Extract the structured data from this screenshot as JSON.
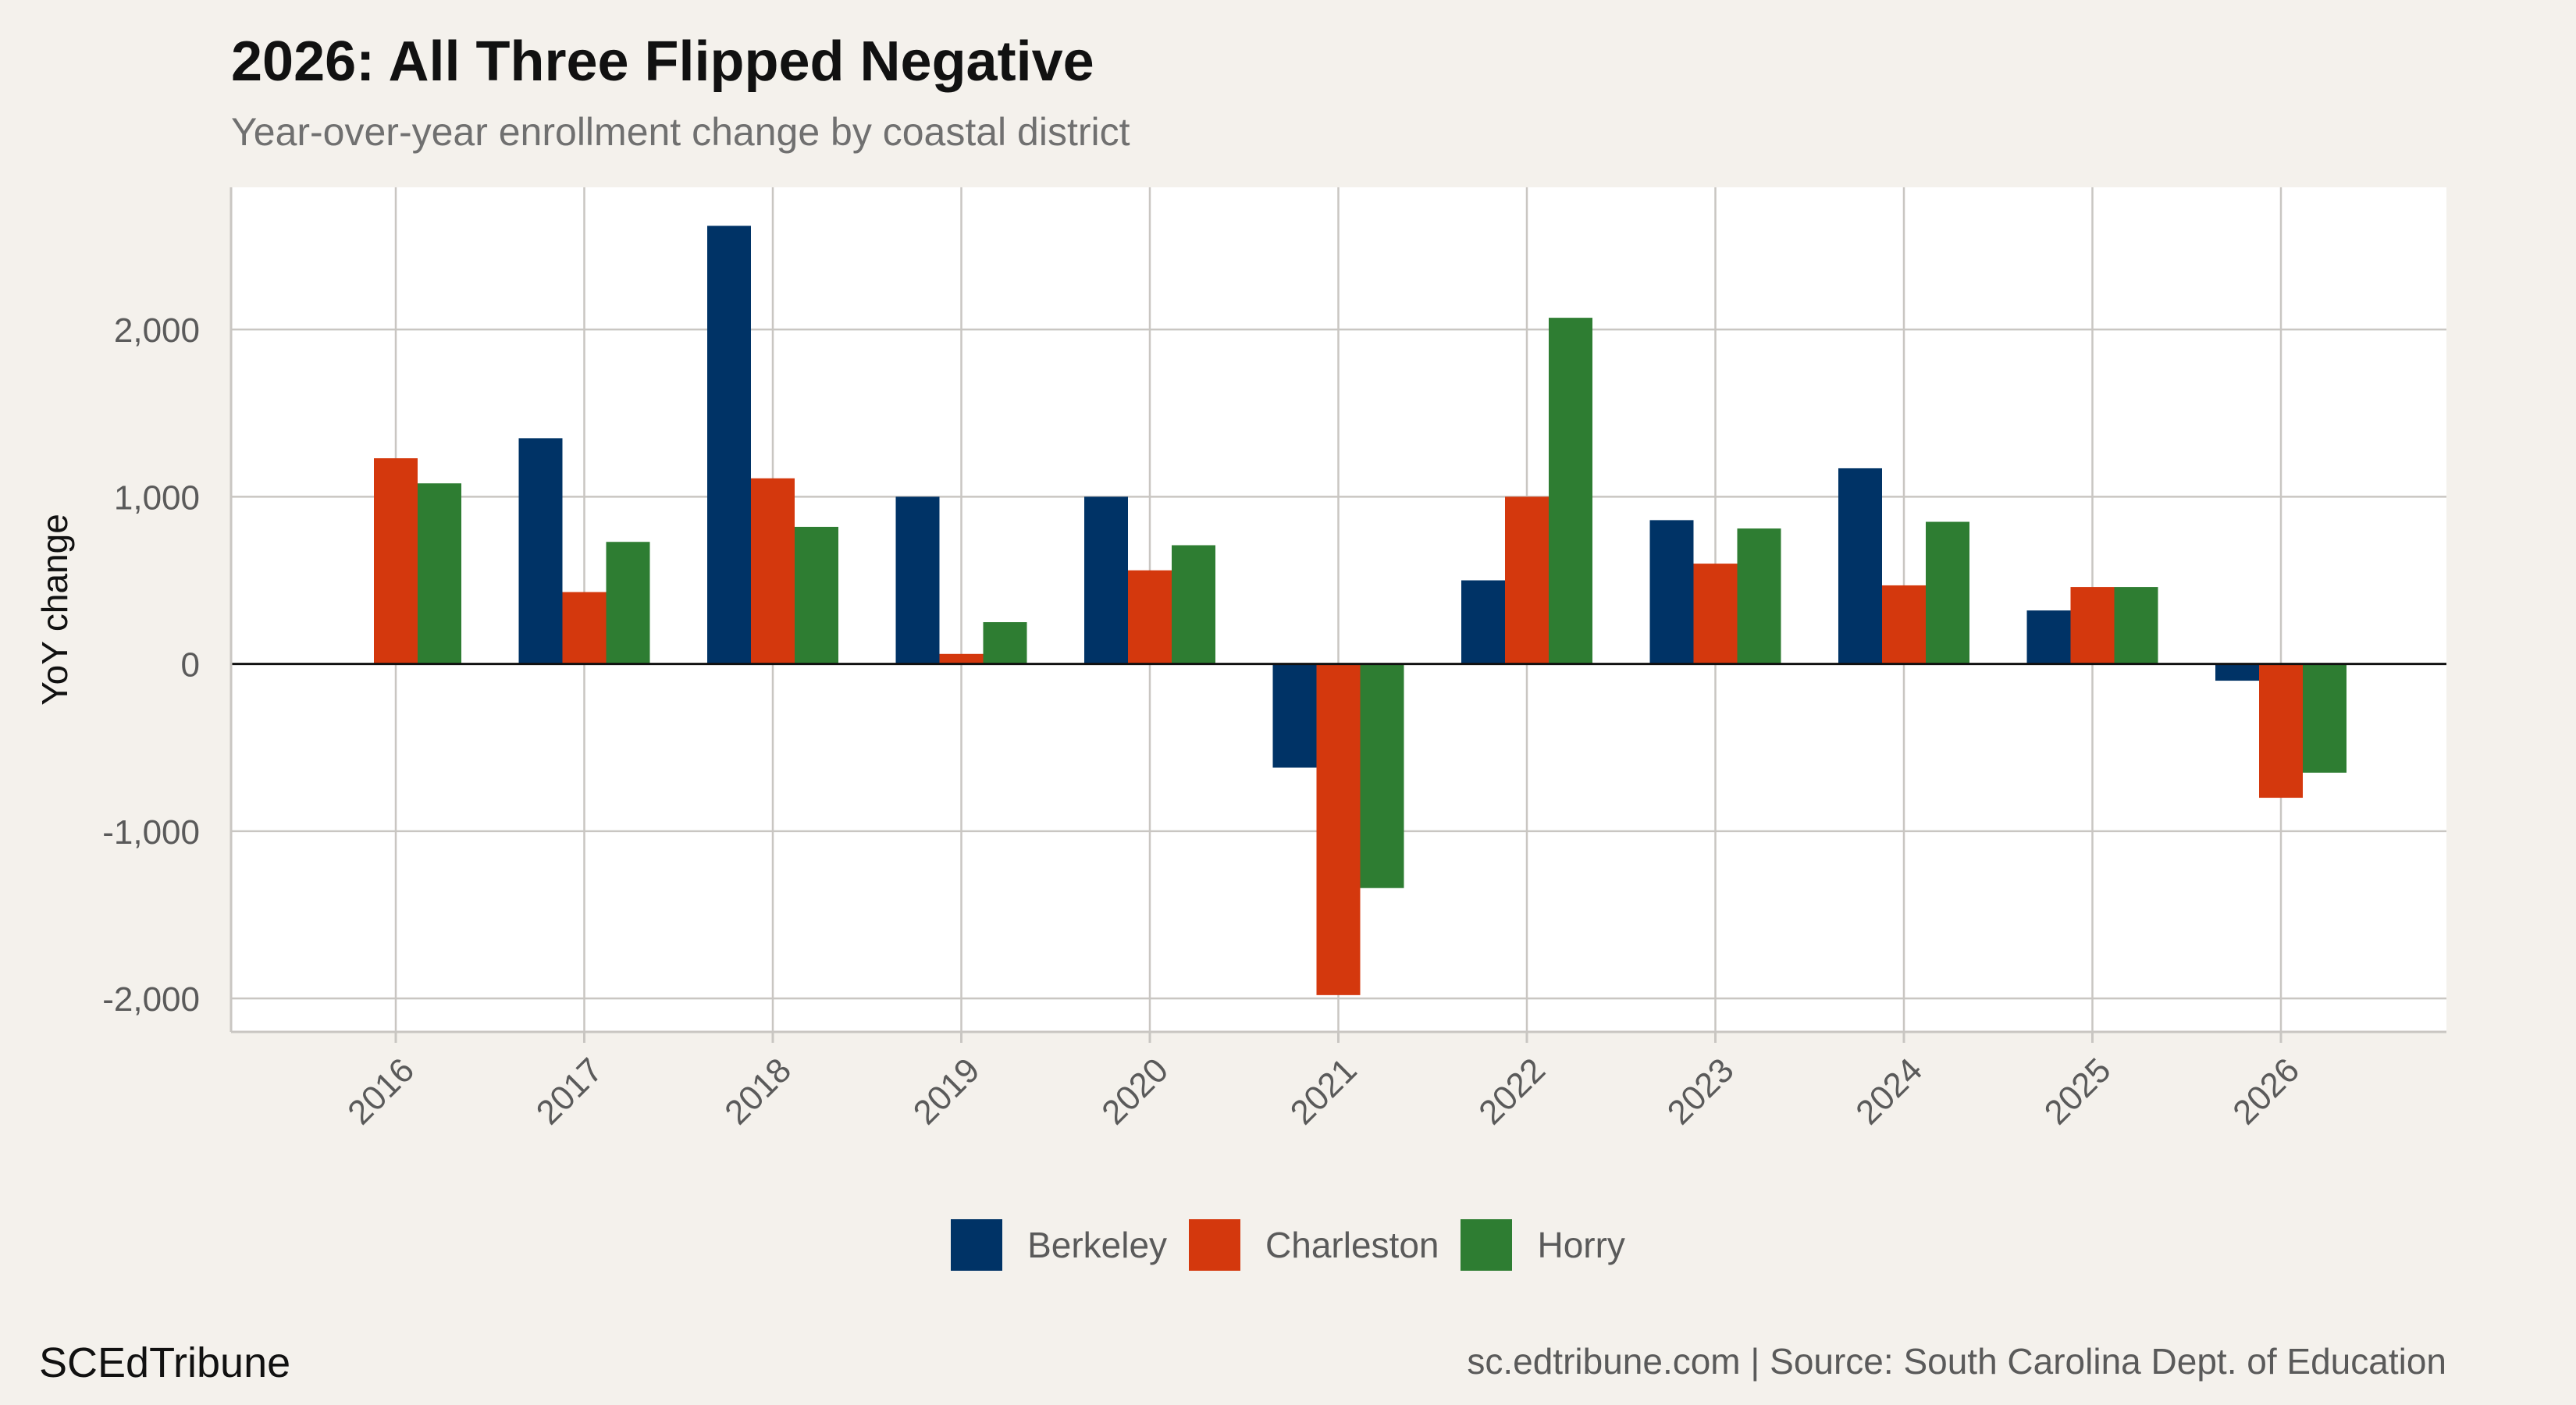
{
  "title": "2026: All Three Flipped Negative",
  "subtitle": "Year-over-year enrollment change by coastal district",
  "footer": {
    "brand": "SCEdTribune",
    "source": "sc.edtribune.com | Source: South Carolina Dept. of Education"
  },
  "colors": {
    "Berkeley": "#003366",
    "Charleston": "#d4380d",
    "Horry": "#2e7d32",
    "background": "#f4f1ec",
    "panel": "#ffffff",
    "grid": "#c9c6c2"
  },
  "chart_data": {
    "type": "bar",
    "title": "2026: All Three Flipped Negative",
    "subtitle": "Year-over-year enrollment change by coastal district",
    "xlabel": "",
    "ylabel": "YoY change",
    "ylim": [
      -2200,
      2850
    ],
    "yticks": [
      -2000,
      -1000,
      0,
      1000,
      2000
    ],
    "ytick_labels": [
      "-2,000",
      "-1,000",
      "0",
      "1,000",
      "2,000"
    ],
    "categories": [
      "2016",
      "2017",
      "2018",
      "2019",
      "2020",
      "2021",
      "2022",
      "2023",
      "2024",
      "2025",
      "2026"
    ],
    "series": [
      {
        "name": "Berkeley",
        "values": [
          0,
          1350,
          2620,
          1000,
          1000,
          -620,
          500,
          860,
          1170,
          320,
          -100
        ]
      },
      {
        "name": "Charleston",
        "values": [
          1230,
          430,
          1110,
          60,
          560,
          -1980,
          1000,
          600,
          470,
          460,
          -800
        ]
      },
      {
        "name": "Horry",
        "values": [
          1080,
          730,
          820,
          250,
          710,
          -1340,
          2070,
          810,
          850,
          460,
          -650
        ]
      }
    ],
    "grid": true,
    "legend": "bottom"
  }
}
